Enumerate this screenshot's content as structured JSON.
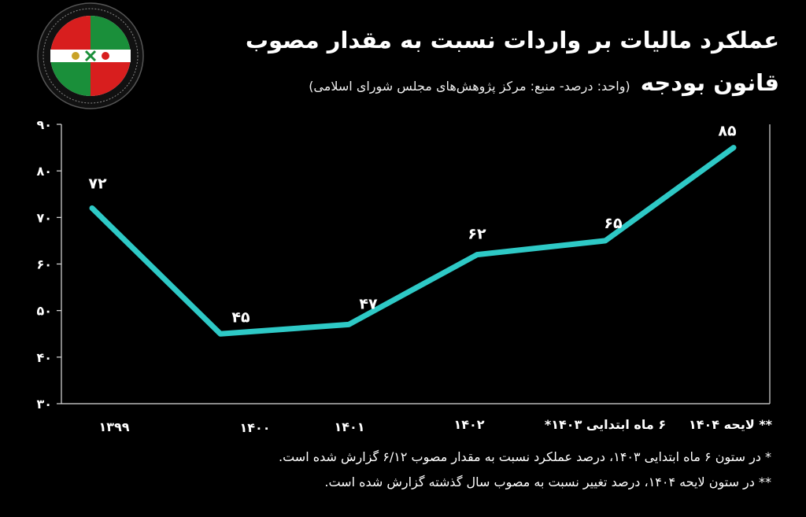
{
  "chart_data": {
    "type": "line",
    "title": "عملکرد مالیات بر واردات نسبت به مقدار مصوب",
    "title_line2": "قانون بودجه",
    "subtitle": "(واحد: درصد- منبع: مرکز پژوهش‌های مجلس شورای اسلامی)",
    "categories": [
      "۱۳۹۹",
      "۱۴۰۰",
      "۱۴۰۱",
      "۱۴۰۲",
      "۶ ماه ابتدایی ۱۴۰۳*",
      "** لایحه ۱۴۰۴"
    ],
    "values": [
      72,
      45,
      47,
      62,
      65,
      85
    ],
    "data_labels": [
      "۷۲",
      "۴۵",
      "۴۷",
      "۶۲",
      "۶۵",
      "۸۵"
    ],
    "yticks": [
      "۳۰",
      "۴۰",
      "۵۰",
      "۶۰",
      "۷۰",
      "۸۰",
      "۹۰"
    ],
    "ytick_values": [
      30,
      40,
      50,
      60,
      70,
      80,
      90
    ],
    "ylim": [
      30,
      90
    ],
    "line_color": "#2ec9c6",
    "grid": false
  },
  "notes": [
    "* در ستون ۶ ماه ابتدایی ۱۴۰۳، درصد عملکرد نسبت به مقدار مصوب ۶/۱۲ گزارش شده است.",
    "** در ستون لایحه ۱۴۰۴، درصد تغییر نسبت به مصوب سال گذشته گزارش شده است."
  ],
  "logo": {
    "colors": [
      "#1a8f3a",
      "#d81e1e",
      "#ffffff"
    ]
  }
}
